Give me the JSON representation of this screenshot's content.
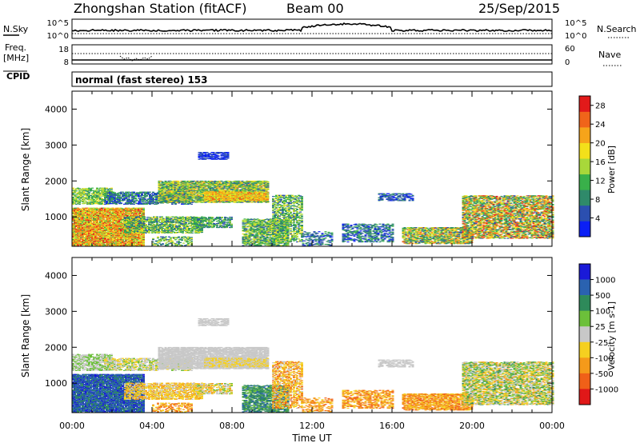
{
  "header": {
    "title": "Zhongshan Station (fitACF)",
    "beam": "Beam 00",
    "date": "25/Sep/2015"
  },
  "sky_panel": {
    "left_label": "N.Sky",
    "right_label": "N.Search",
    "left_ticks": [
      "10^5",
      "10^0"
    ],
    "right_ticks": [
      "10^5",
      "10^0"
    ]
  },
  "freq_panel": {
    "left_label_1": "Freq.",
    "left_label_2": "[MHz]",
    "right_label": "Nave",
    "left_ticks": [
      "18",
      "8"
    ],
    "right_ticks": [
      "60",
      "0"
    ]
  },
  "cpid": {
    "label": "CPID",
    "mode": "normal (fast stereo) 153"
  },
  "chart_data": [
    {
      "type": "heatmap",
      "quantity": "power",
      "xlabel": "",
      "ylabel": "Slant Range [km]",
      "yticks": [
        "1000",
        "2000",
        "3000",
        "4000"
      ],
      "ylim": [
        180,
        4500
      ],
      "xlim_hours": [
        0,
        24
      ],
      "colorbar_label": "Power [dB]",
      "colorbar_ticks": [
        "4",
        "8",
        "12",
        "16",
        "20",
        "24",
        "28"
      ],
      "colorbar_range": [
        0,
        30
      ],
      "colors": [
        "#0b1ff5",
        "#2b4fb0",
        "#2f8a6a",
        "#39b04a",
        "#a8d83a",
        "#f3e01a",
        "#f6a41a",
        "#f0641a",
        "#e21a1a"
      ]
    },
    {
      "type": "heatmap",
      "quantity": "velocity",
      "xlabel": "Time UT",
      "ylabel": "Slant Range [km]",
      "yticks": [
        "1000",
        "2000",
        "3000",
        "4000"
      ],
      "ylim": [
        180,
        4500
      ],
      "xlim_hours": [
        0,
        24
      ],
      "xticks": [
        "00:00",
        "04:00",
        "08:00",
        "12:00",
        "16:00",
        "20:00",
        "00:00"
      ],
      "colorbar_label": "Velocity [m s-1]",
      "colorbar_ticks": [
        "1000",
        "500",
        "100",
        "25",
        "-25",
        "-100",
        "-500",
        "-1000"
      ],
      "colors": [
        "#1a1ad8",
        "#2a62b0",
        "#2e8a5a",
        "#6cc03a",
        "#c8c8c8",
        "#f5d020",
        "#f59a1a",
        "#f06018",
        "#e01818"
      ]
    }
  ]
}
